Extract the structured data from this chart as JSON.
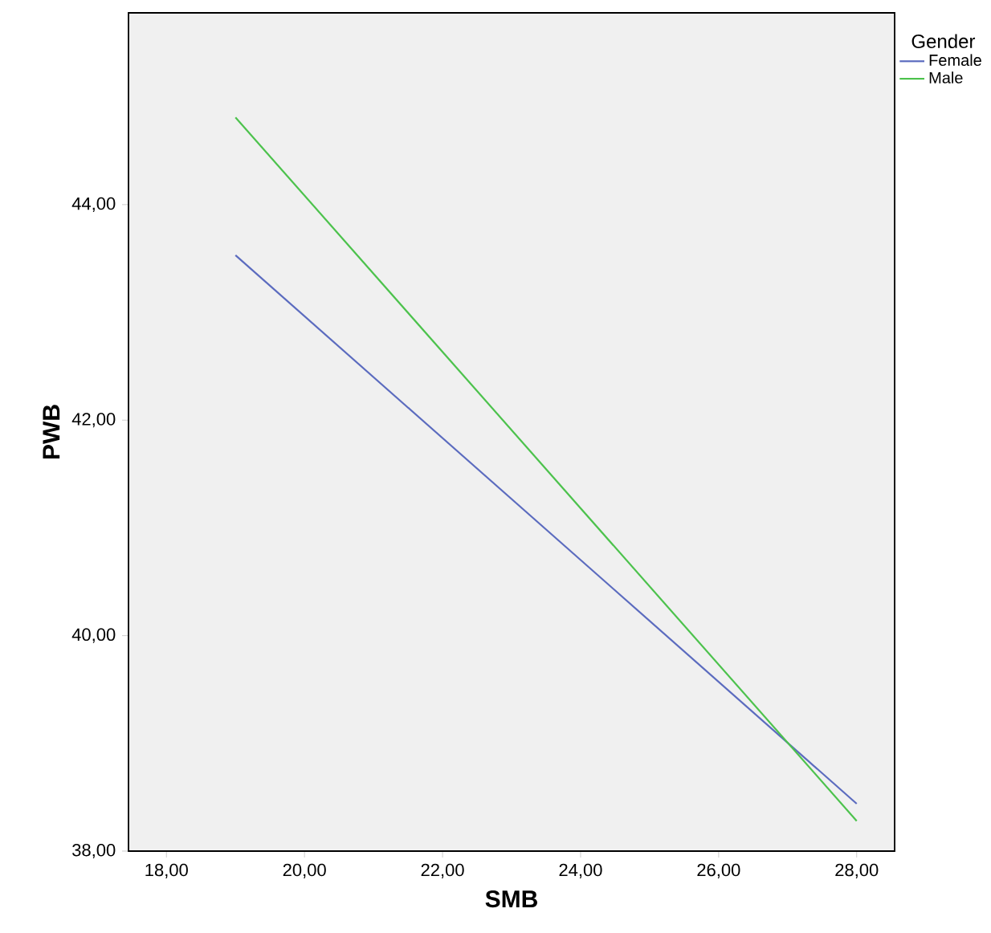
{
  "chart_data": {
    "type": "line",
    "xlabel": "SMB",
    "ylabel": "PWB",
    "legend_title": "Gender",
    "legend": "top right",
    "xlim": [
      17.45,
      28.55
    ],
    "ylim": [
      38,
      45.78
    ],
    "xticks": [
      {
        "value": 18,
        "label": "18,00"
      },
      {
        "value": 20,
        "label": "20,00"
      },
      {
        "value": 22,
        "label": "22,00"
      },
      {
        "value": 24,
        "label": "24,00"
      },
      {
        "value": 26,
        "label": "26,00"
      },
      {
        "value": 28,
        "label": "28,00"
      }
    ],
    "yticks": [
      {
        "value": 38,
        "label": "38,00"
      },
      {
        "value": 40,
        "label": "40,00"
      },
      {
        "value": 42,
        "label": "42,00"
      },
      {
        "value": 44,
        "label": "44,00"
      }
    ],
    "grid": false,
    "x": [
      19,
      28
    ],
    "series": [
      {
        "name": "Female",
        "color": "#5b6bbf",
        "values": [
          43.53,
          38.44
        ]
      },
      {
        "name": "Male",
        "color": "#4cc24c",
        "values": [
          44.81,
          38.28
        ]
      }
    ]
  }
}
